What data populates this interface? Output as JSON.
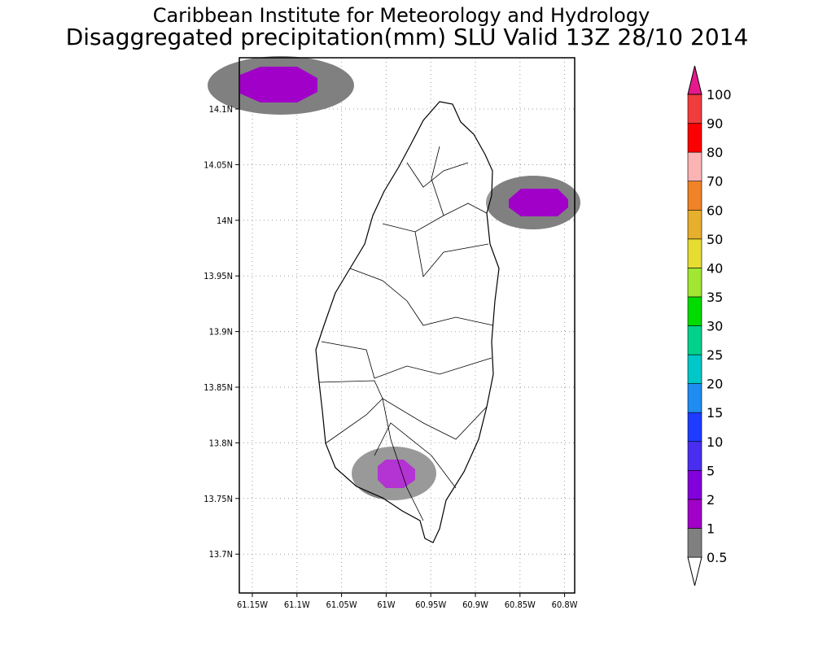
{
  "title": [
    "Caribbean Institute for Meteorology and Hydrology",
    "Disaggregated precipitation(mm) SLU Valid 13Z 28/10 2014"
  ],
  "map": {
    "xticks": [
      "61.15W",
      "61.1W",
      "61.05W",
      "61W",
      "60.95W",
      "60.9W",
      "60.85W",
      "60.8W"
    ],
    "yticks": [
      "14.1N",
      "14.05N",
      "14N",
      "13.95N",
      "13.9N",
      "13.85N",
      "13.8N",
      "13.75N",
      "13.7N"
    ]
  },
  "colorbar": {
    "levels": [
      0.5,
      1,
      2,
      5,
      10,
      15,
      20,
      25,
      30,
      35,
      40,
      50,
      60,
      70,
      80,
      90,
      100
    ],
    "colors": [
      "#ffffff",
      "#808080",
      "#a000c8",
      "#8200dc",
      "#4a2eef",
      "#1e3cff",
      "#1e8cf0",
      "#00c8c8",
      "#00d28c",
      "#00dc00",
      "#a0e632",
      "#e6dc32",
      "#e6af2d",
      "#f08228",
      "#fab4b4",
      "#fa0000",
      "#f03c3c",
      "#e6198c"
    ]
  }
}
